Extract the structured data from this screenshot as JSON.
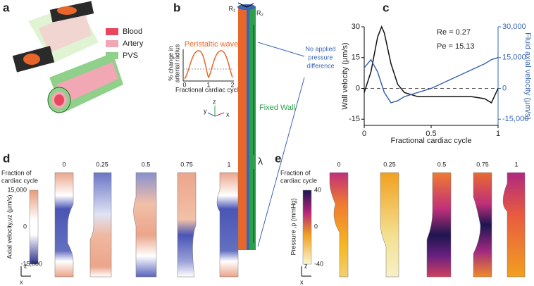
{
  "panel_a": {
    "letter": "a",
    "legend": [
      {
        "label": "Blood",
        "color": "#e8475d"
      },
      {
        "label": "Artery",
        "color": "#f2a7b5"
      },
      {
        "label": "PVS",
        "color": "#8fd08a"
      }
    ]
  },
  "panel_b": {
    "letter": "b",
    "inset_title": "Peristaltic wave",
    "inset_ylabel_lines": [
      "% change in",
      "arterial radius"
    ],
    "inset_xlabel": "Fractional cardiac cycle",
    "inset_xticks": [
      0,
      1,
      2
    ],
    "r1": "R₁",
    "r2": "R₂",
    "lambda": "λ",
    "fixed_wall": "Fixed Wall",
    "note_lines": [
      "No applied",
      "pressure",
      "difference"
    ],
    "axis_names": [
      "y",
      "z",
      "x"
    ]
  },
  "chart_data": {
    "type": "line",
    "letter": "c",
    "annotations": [
      "Re = 0.27",
      "Pe = 15.13"
    ],
    "ylabel": "Wall velocity (μm/s)",
    "y2label": "Fluid axial velocity (μm/s)",
    "xlabel": "Fractional cardiac cycle",
    "x": [
      0,
      0.05,
      0.1,
      0.13,
      0.15,
      0.2,
      0.25,
      0.3,
      0.4,
      0.5,
      0.6,
      0.7,
      0.8,
      0.9,
      0.95,
      1
    ],
    "series": [
      {
        "color": "#111111",
        "values": [
          -2,
          8,
          25,
          30,
          27,
          12,
          2,
          -2,
          -4,
          -4,
          -4,
          -4,
          -4,
          -5,
          -7,
          0
        ]
      },
      {
        "color": "#3a65b0",
        "axis": "y2",
        "values": [
          10000,
          14000,
          8000,
          2000,
          -2000,
          -7000,
          -6000,
          -4000,
          -2000,
          0,
          3000,
          6000,
          9000,
          12000,
          14000,
          15000
        ]
      }
    ],
    "xlim": [
      0,
      1
    ],
    "xticks": [
      0,
      0.5,
      1
    ],
    "ylim": [
      -18,
      30
    ],
    "yticks": [
      -15,
      0,
      15,
      30
    ],
    "y2lim": [
      -18000,
      30000
    ],
    "y2ticks": [
      {
        "value": -15000,
        "label": "-15,000"
      },
      0,
      {
        "value": 15000,
        "label": "15,000"
      },
      {
        "value": 30000,
        "label": "30,000"
      }
    ]
  },
  "panel_d": {
    "letter": "d",
    "header_lines": [
      "Fraction of",
      "cardiac cycle"
    ],
    "colorbar_label": "Axial velocity,vz (μm/s)",
    "colorbar_ticks": [
      "15,000",
      "0",
      "-15,000"
    ],
    "columns": [
      "0",
      "0.25",
      "0.5",
      "0.75",
      "1"
    ],
    "axis_names": [
      "z",
      "x"
    ]
  },
  "panel_e": {
    "letter": "e",
    "header_lines": [
      "Fraction of",
      "cardiac cycle"
    ],
    "colorbar_label": "Pressure ,p (mmHg)",
    "colorbar_ticks": [
      "40",
      "0",
      "-40"
    ],
    "columns": [
      "0",
      "0.25",
      "0.5",
      "0.75",
      "1"
    ],
    "axis_names": [
      "z",
      "x"
    ]
  }
}
